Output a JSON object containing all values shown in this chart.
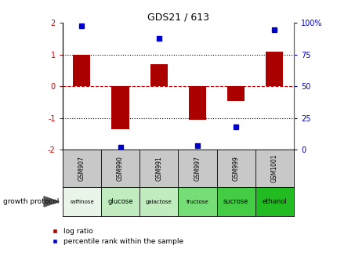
{
  "title": "GDS21 / 613",
  "samples": [
    "GSM907",
    "GSM990",
    "GSM991",
    "GSM997",
    "GSM999",
    "GSM1001"
  ],
  "protocols": [
    "raffinose",
    "glucose",
    "galactose",
    "fructose",
    "sucrose",
    "ethanol"
  ],
  "prot_colors": [
    "#e8f8e8",
    "#ccf0cc",
    "#ccf0cc",
    "#99ee99",
    "#66dd66",
    "#33cc33"
  ],
  "log_ratios": [
    1.0,
    -1.35,
    0.7,
    -1.05,
    -0.45,
    1.1
  ],
  "percentile_ranks": [
    98,
    2,
    88,
    3,
    18,
    95
  ],
  "bar_color": "#aa0000",
  "dot_color": "#0000cc",
  "ylim": [
    -2,
    2
  ],
  "y2lim": [
    0,
    100
  ],
  "yticks_left": [
    -2,
    -1,
    0,
    1,
    2
  ],
  "yticks_right": [
    0,
    25,
    50,
    75,
    100
  ],
  "bar_width": 0.45,
  "bg_color": "#ffffff",
  "sample_box_color": "#c8c8c8",
  "left_ycolor": "#cc0000",
  "right_ycolor": "#0000cc"
}
